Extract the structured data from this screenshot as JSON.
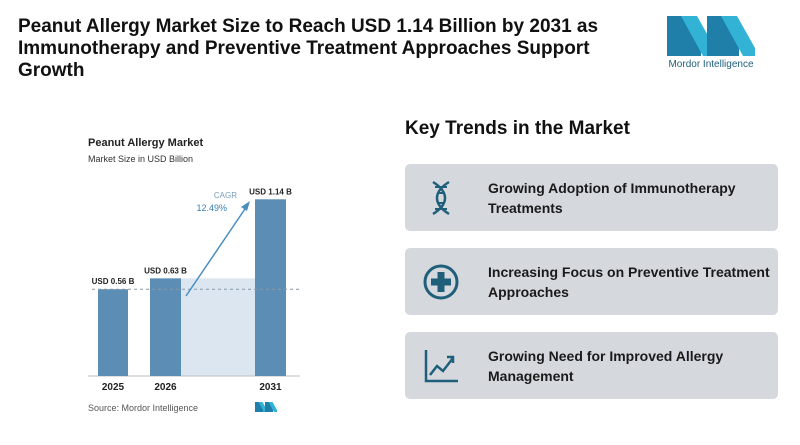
{
  "headline": "Peanut Allergy Market Size to Reach USD 1.14 Billion by 2031 as Immunotherapy and Preventive Treatment Approaches Support Growth",
  "logo": {
    "text": "Mordor Intelligence",
    "color": "#2a9bc4"
  },
  "chart_data": {
    "type": "bar",
    "title": "Peanut Allergy Market",
    "subtitle": "Market Size in USD Billion",
    "categories": [
      "2025",
      "2026",
      "2031"
    ],
    "values": [
      0.56,
      0.63,
      1.14
    ],
    "data_labels": [
      "USD 0.56 B",
      "USD 0.63 B",
      "USD 1.14 B"
    ],
    "ylim": [
      0,
      1.2
    ],
    "cagr_label": "CAGR",
    "cagr_value": "12.49%",
    "bar_color": "#5b8db5",
    "accent_color": "#4a8ec0",
    "source": "Source: Mordor Intelligence"
  },
  "trends": {
    "title": "Key Trends in the Market",
    "items": [
      {
        "label": "Growing Adoption of Immunotherapy Treatments",
        "icon": "dna-icon"
      },
      {
        "label": "Increasing Focus on Preventive Treatment Approaches",
        "icon": "medical-cross-icon"
      },
      {
        "label": "Growing Need for Improved Allergy Management",
        "icon": "trend-chart-icon"
      }
    ],
    "icon_color": "#1f5f7a"
  }
}
